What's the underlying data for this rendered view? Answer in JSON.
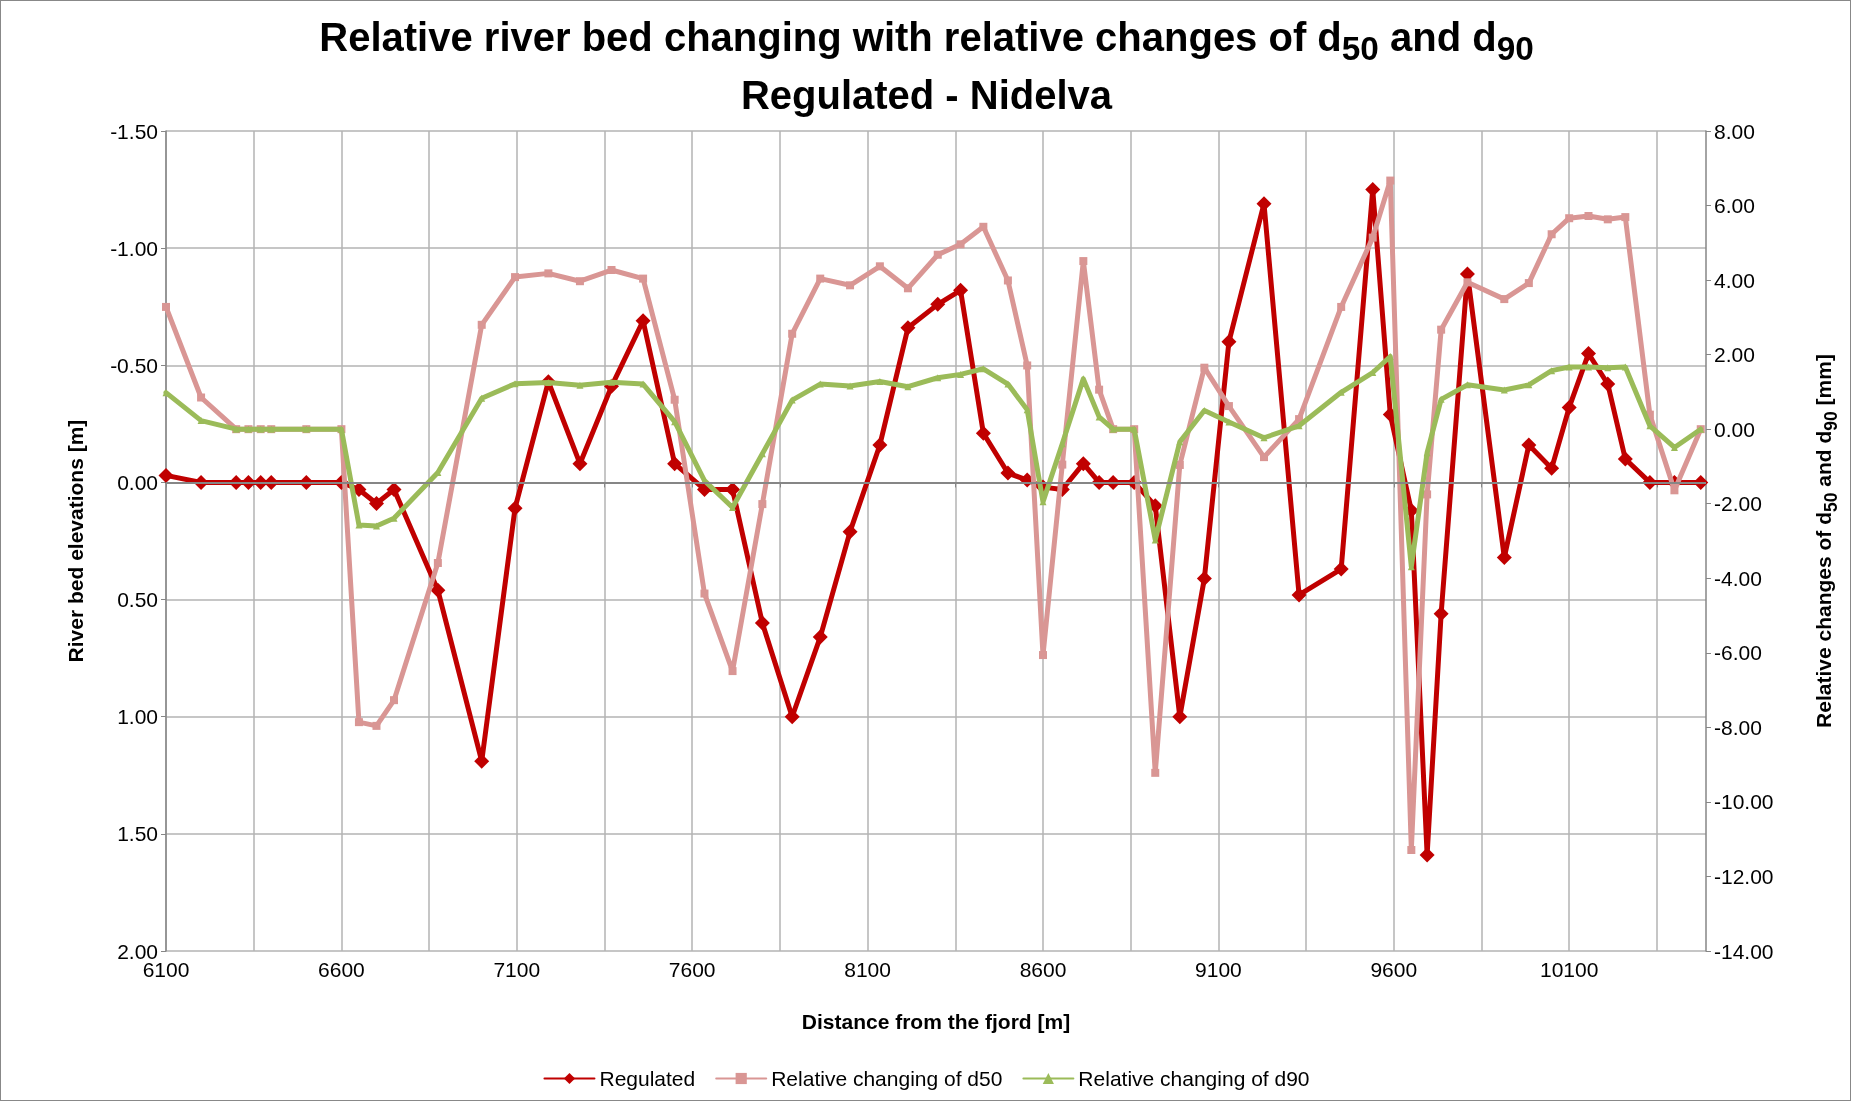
{
  "chart_data": {
    "type": "line",
    "title": "Relative river bed changing with relative changes of d$_{50}$ and d$_{90}$",
    "subtitle": "Regulated - Nidelva",
    "xlabel": "Distance from the fjord [m]",
    "ylabel": "River bed elevations [m]",
    "y2label": "Relative changes of d$_{50}$ and d$_{90}$ [mm]",
    "x": [
      6100,
      6200,
      6300,
      6335,
      6370,
      6400,
      6500,
      6600,
      6650,
      6700,
      6750,
      6875,
      7000,
      7095,
      7190,
      7280,
      7370,
      7460,
      7550,
      7635,
      7715,
      7800,
      7885,
      7965,
      8050,
      8135,
      8215,
      8300,
      8365,
      8430,
      8500,
      8555,
      8600,
      8655,
      8715,
      8760,
      8800,
      8860,
      8920,
      8990,
      9060,
      9130,
      9230,
      9330,
      9450,
      9540,
      9590,
      9650,
      9695,
      9735,
      9810,
      9915,
      9985,
      10050,
      10100,
      10155,
      10210,
      10260,
      10330,
      10400,
      10475
    ],
    "series": [
      {
        "name": "Regulated",
        "color": "#c00000",
        "marker": "diamond",
        "values": [
          -0.03,
          0,
          0,
          0,
          0,
          0,
          0,
          0,
          0.03,
          0.09,
          0.03,
          0.46,
          1.19,
          0.11,
          -0.43,
          -0.08,
          -0.41,
          -0.69,
          -0.08,
          0.03,
          0.03,
          0.6,
          1.0,
          0.66,
          0.21,
          -0.16,
          -0.66,
          -0.76,
          -0.82,
          -0.21,
          -0.04,
          -0.01,
          0.02,
          0.03,
          -0.08,
          0,
          0,
          0,
          0.1,
          1.0,
          0.41,
          -0.6,
          -1.19,
          0.48,
          0.37,
          -1.25,
          -0.29,
          0.12,
          1.59,
          0.56,
          -0.89,
          0.32,
          -0.16,
          -0.06,
          -0.32,
          -0.55,
          -0.42,
          -0.1,
          0,
          0,
          0
        ]
      },
      {
        "name": "Relative changing of d50",
        "color": "#d99694",
        "marker": "square",
        "axis": "y2",
        "values": [
          3.28,
          0.85,
          0,
          0,
          0,
          0,
          0,
          0,
          -7.86,
          -7.96,
          -7.27,
          -3.59,
          2.8,
          4.08,
          4.18,
          3.97,
          4.27,
          4.04,
          0.79,
          -4.41,
          -6.49,
          -2.01,
          2.56,
          4.04,
          3.86,
          4.37,
          3.78,
          4.68,
          4.96,
          5.43,
          3.99,
          1.71,
          -6.06,
          -0.95,
          4.51,
          1.06,
          0,
          0,
          -9.22,
          -0.96,
          1.65,
          0.62,
          -0.75,
          0.27,
          3.28,
          5.14,
          6.67,
          -11.29,
          -1.75,
          2.67,
          3.94,
          3.49,
          3.92,
          5.23,
          5.66,
          5.72,
          5.63,
          5.69,
          0.39,
          -1.64,
          0
        ]
      },
      {
        "name": "Relative changing of d90",
        "color": "#9bbb59",
        "marker": "triangle",
        "axis": "y2",
        "values": [
          0.98,
          0.23,
          0,
          0,
          0,
          0,
          0,
          0,
          -2.57,
          -2.6,
          -2.39,
          -1.16,
          0.83,
          1.22,
          1.25,
          1.18,
          1.26,
          1.21,
          0.2,
          -1.38,
          -2.1,
          -0.66,
          0.78,
          1.21,
          1.16,
          1.28,
          1.14,
          1.38,
          1.47,
          1.62,
          1.21,
          0.52,
          -1.95,
          -0.39,
          1.35,
          0.33,
          0,
          0,
          -2.97,
          -0.34,
          0.5,
          0.19,
          -0.23,
          0.09,
          0.99,
          1.52,
          1.95,
          -3.69,
          -0.63,
          0.8,
          1.19,
          1.05,
          1.19,
          1.57,
          1.67,
          1.67,
          1.65,
          1.67,
          0.09,
          -0.49,
          0
        ]
      }
    ],
    "xlim": [
      6100,
      10490
    ],
    "xticks": [
      6100,
      {
        "value": 6350,
        "label": null
      },
      6600,
      {
        "value": 6850,
        "label": null
      },
      7100,
      {
        "value": 7350,
        "label": null
      },
      7600,
      {
        "value": 7850,
        "label": null
      },
      8100,
      {
        "value": 8350,
        "label": null
      },
      8600,
      {
        "value": 8850,
        "label": null
      },
      9100,
      {
        "value": 9350,
        "label": null
      },
      9600,
      {
        "value": 9850,
        "label": null
      },
      10100,
      {
        "value": 10350,
        "label": null
      }
    ],
    "ylim": [
      2,
      -1.5
    ],
    "yticks": [
      {
        "value": -1.5,
        "label": "-1.50"
      },
      {
        "value": -1,
        "label": "-1.00"
      },
      {
        "value": -0.5,
        "label": "-0.50"
      },
      {
        "value": 0,
        "label": "0.00"
      },
      {
        "value": 0.5,
        "label": "0.50"
      },
      {
        "value": 1,
        "label": "1.00"
      },
      {
        "value": 1.5,
        "label": "1.50"
      },
      {
        "value": 2,
        "label": "2.00"
      }
    ],
    "y2lim": [
      -14,
      8
    ],
    "y2ticks": [
      {
        "value": -14,
        "label": "-14.00"
      },
      {
        "value": -12,
        "label": "-12.00"
      },
      {
        "value": -10,
        "label": "-10.00"
      },
      {
        "value": -8,
        "label": "-8.00"
      },
      {
        "value": -6,
        "label": "-6.00"
      },
      {
        "value": -4,
        "label": "-4.00"
      },
      {
        "value": -2,
        "label": "-2.00"
      },
      {
        "value": 0,
        "label": "0.00"
      },
      {
        "value": 2,
        "label": "2.00"
      },
      {
        "value": 4,
        "label": "4.00"
      },
      {
        "value": 6,
        "label": "6.00"
      },
      {
        "value": 8,
        "label": "8.00"
      }
    ],
    "ref_lines": [
      {
        "axis": "y",
        "value": 0,
        "label": null,
        "color": "#868686"
      }
    ],
    "grid": true,
    "legend": "bottom"
  }
}
